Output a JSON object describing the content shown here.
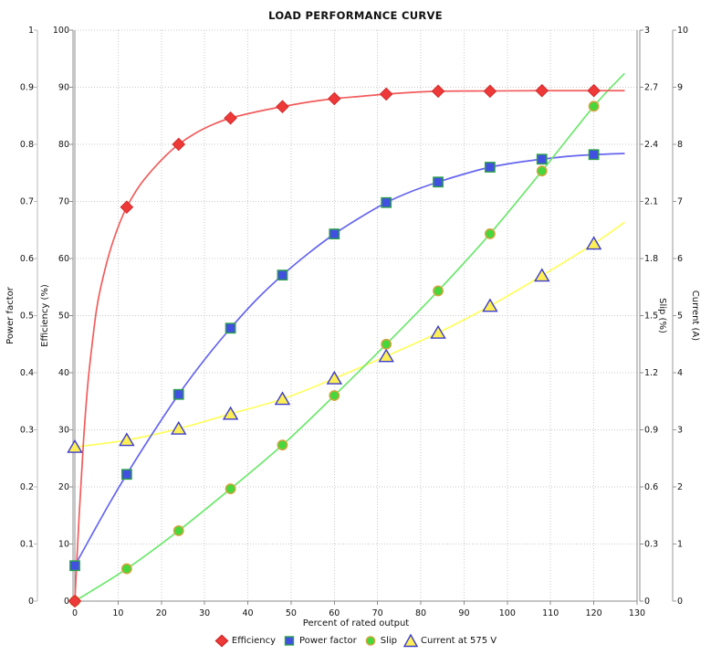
{
  "chart_data": {
    "type": "line",
    "title": "LOAD PERFORMANCE CURVE",
    "background": "#ffffff",
    "grid": {
      "on": true,
      "style": "dotted",
      "color": "#c9c9c9"
    },
    "legend_position": "bottom",
    "x_axis": {
      "label": "Percent of rated output",
      "min": 0,
      "max": 130,
      "ticks": [
        [
          0,
          "0"
        ],
        [
          10,
          "10"
        ],
        [
          20,
          "20"
        ],
        [
          30,
          "30"
        ],
        [
          40,
          "40"
        ],
        [
          50,
          "50"
        ],
        [
          60,
          "60"
        ],
        [
          70,
          "70"
        ],
        [
          80,
          "80"
        ],
        [
          90,
          "90"
        ],
        [
          100,
          "100"
        ],
        [
          110,
          "110"
        ],
        [
          120,
          "120"
        ],
        [
          130,
          "130"
        ]
      ]
    },
    "y_axes": [
      {
        "id": "pf",
        "label": "Power factor",
        "side": "left",
        "min": 0,
        "max": 1,
        "ticks": [
          [
            0,
            "0"
          ],
          [
            0.1,
            "0.1"
          ],
          [
            0.2,
            "0.2"
          ],
          [
            0.3,
            "0.3"
          ],
          [
            0.4,
            "0.4"
          ],
          [
            0.5,
            "0.5"
          ],
          [
            0.6,
            "0.6"
          ],
          [
            0.7,
            "0.7"
          ],
          [
            0.8,
            "0.8"
          ],
          [
            0.9,
            "0.9"
          ],
          [
            1,
            "1"
          ]
        ]
      },
      {
        "id": "eff",
        "label": "Efficiency (%)",
        "side": "left",
        "min": 0,
        "max": 100,
        "ticks": [
          [
            0,
            "0"
          ],
          [
            10,
            "10"
          ],
          [
            20,
            "20"
          ],
          [
            30,
            "30"
          ],
          [
            40,
            "40"
          ],
          [
            50,
            "50"
          ],
          [
            60,
            "60"
          ],
          [
            70,
            "70"
          ],
          [
            80,
            "80"
          ],
          [
            90,
            "90"
          ],
          [
            100,
            "100"
          ]
        ]
      },
      {
        "id": "slip",
        "label": "Slip (%)",
        "side": "right",
        "min": 0,
        "max": 3,
        "ticks": [
          [
            0,
            "0"
          ],
          [
            0.3,
            "0.3"
          ],
          [
            0.6,
            "0.6"
          ],
          [
            0.9,
            "0.9"
          ],
          [
            1.2,
            "1.2"
          ],
          [
            1.5,
            "1.5"
          ],
          [
            1.8,
            "1.8"
          ],
          [
            2.1,
            "2.1"
          ],
          [
            2.4,
            "2.4"
          ],
          [
            2.7,
            "2.7"
          ],
          [
            3,
            "3"
          ]
        ]
      },
      {
        "id": "cur",
        "label": "Current (A)",
        "side": "right",
        "min": 0,
        "max": 10,
        "ticks": [
          [
            0,
            "0"
          ],
          [
            1,
            "1"
          ],
          [
            2,
            "2"
          ],
          [
            3,
            "3"
          ],
          [
            4,
            "4"
          ],
          [
            5,
            "5"
          ],
          [
            6,
            "6"
          ],
          [
            7,
            "7"
          ],
          [
            8,
            "8"
          ],
          [
            9,
            "9"
          ],
          [
            10,
            "10"
          ]
        ]
      }
    ],
    "series": [
      {
        "name": "Efficiency",
        "axis": "eff",
        "marker": "diamond",
        "colors": {
          "line": "#f25c5c",
          "marker_fill": "#ee3939",
          "marker_stroke": "#d02a2a"
        },
        "points": [
          [
            0,
            0
          ],
          [
            12,
            69
          ],
          [
            24,
            80
          ],
          [
            36,
            84.6
          ],
          [
            48,
            86.6
          ],
          [
            60,
            88
          ],
          [
            72,
            88.8
          ],
          [
            84,
            89.3
          ],
          [
            96,
            89.3
          ],
          [
            108,
            89.4
          ],
          [
            120,
            89.4
          ]
        ],
        "curve": [
          [
            0,
            0
          ],
          [
            1,
            15
          ],
          [
            2,
            28
          ],
          [
            3,
            38
          ],
          [
            4,
            45
          ],
          [
            5,
            51
          ],
          [
            6,
            55
          ],
          [
            8,
            61
          ],
          [
            10,
            65.5
          ],
          [
            12,
            69
          ],
          [
            15,
            72.8
          ],
          [
            18,
            75.6
          ],
          [
            21,
            78
          ],
          [
            24,
            80
          ],
          [
            28,
            82
          ],
          [
            32,
            83.5
          ],
          [
            36,
            84.6
          ],
          [
            42,
            85.7
          ],
          [
            48,
            86.6
          ],
          [
            54,
            87.4
          ],
          [
            60,
            88
          ],
          [
            66,
            88.4
          ],
          [
            72,
            88.8
          ],
          [
            78,
            89.1
          ],
          [
            84,
            89.3
          ],
          [
            96,
            89.35
          ],
          [
            108,
            89.4
          ],
          [
            120,
            89.4
          ],
          [
            127,
            89.4
          ]
        ]
      },
      {
        "name": "Power factor",
        "axis": "pf",
        "marker": "square",
        "colors": {
          "line": "#6565f0",
          "marker_fill": "#4150e0",
          "marker_stroke": "#2ba04a"
        },
        "points": [
          [
            0,
            0.062
          ],
          [
            12,
            0.222
          ],
          [
            24,
            0.362
          ],
          [
            36,
            0.478
          ],
          [
            48,
            0.571
          ],
          [
            60,
            0.643
          ],
          [
            72,
            0.698
          ],
          [
            84,
            0.734
          ],
          [
            96,
            0.76
          ],
          [
            108,
            0.774
          ],
          [
            120,
            0.782
          ]
        ],
        "curve": [
          [
            0,
            0.062
          ],
          [
            4,
            0.117
          ],
          [
            8,
            0.171
          ],
          [
            12,
            0.222
          ],
          [
            18,
            0.294
          ],
          [
            24,
            0.362
          ],
          [
            30,
            0.423
          ],
          [
            36,
            0.478
          ],
          [
            42,
            0.528
          ],
          [
            48,
            0.571
          ],
          [
            54,
            0.609
          ],
          [
            60,
            0.643
          ],
          [
            66,
            0.672
          ],
          [
            72,
            0.698
          ],
          [
            78,
            0.718
          ],
          [
            84,
            0.734
          ],
          [
            90,
            0.748
          ],
          [
            96,
            0.76
          ],
          [
            102,
            0.768
          ],
          [
            108,
            0.774
          ],
          [
            114,
            0.779
          ],
          [
            120,
            0.782
          ],
          [
            127,
            0.784
          ]
        ]
      },
      {
        "name": "Slip",
        "axis": "slip",
        "marker": "circle",
        "colors": {
          "line": "#6de86d",
          "marker_fill": "#46d73c",
          "marker_stroke": "#d9a13c"
        },
        "points": [
          [
            0,
            0
          ],
          [
            12,
            0.17
          ],
          [
            24,
            0.37
          ],
          [
            36,
            0.59
          ],
          [
            48,
            0.82
          ],
          [
            60,
            1.08
          ],
          [
            72,
            1.35
          ],
          [
            84,
            1.63
          ],
          [
            96,
            1.93
          ],
          [
            108,
            2.26
          ],
          [
            120,
            2.6
          ]
        ],
        "curve": [
          [
            0,
            0
          ],
          [
            12,
            0.17
          ],
          [
            24,
            0.37
          ],
          [
            36,
            0.59
          ],
          [
            48,
            0.82
          ],
          [
            60,
            1.08
          ],
          [
            72,
            1.35
          ],
          [
            84,
            1.63
          ],
          [
            96,
            1.93
          ],
          [
            108,
            2.26
          ],
          [
            120,
            2.6
          ],
          [
            127,
            2.77
          ]
        ]
      },
      {
        "name": "Current at 575 V",
        "axis": "cur",
        "marker": "triangle",
        "colors": {
          "line": "#ffff5e",
          "marker_fill": "#fdef55",
          "marker_stroke": "#3c3ccc"
        },
        "points": [
          [
            0,
            2.7
          ],
          [
            12,
            2.82
          ],
          [
            24,
            3.02
          ],
          [
            36,
            3.28
          ],
          [
            48,
            3.54
          ],
          [
            60,
            3.9
          ],
          [
            72,
            4.29
          ],
          [
            84,
            4.7
          ],
          [
            96,
            5.17
          ],
          [
            108,
            5.7
          ],
          [
            120,
            6.26
          ]
        ],
        "curve": [
          [
            0,
            2.7
          ],
          [
            12,
            2.82
          ],
          [
            24,
            3.02
          ],
          [
            36,
            3.28
          ],
          [
            48,
            3.54
          ],
          [
            60,
            3.9
          ],
          [
            72,
            4.29
          ],
          [
            84,
            4.7
          ],
          [
            96,
            5.17
          ],
          [
            108,
            5.7
          ],
          [
            120,
            6.26
          ],
          [
            127,
            6.63
          ]
        ]
      }
    ]
  }
}
